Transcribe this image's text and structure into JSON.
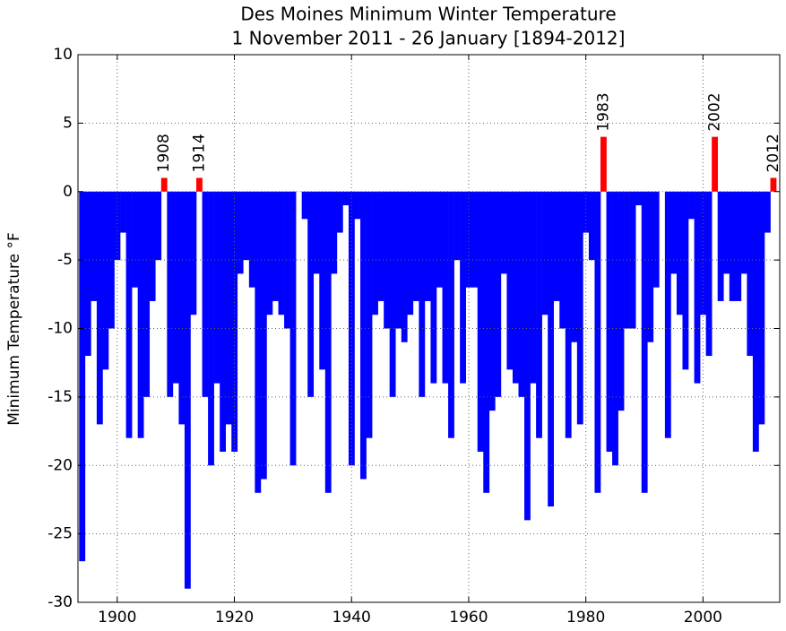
{
  "chart_data": {
    "type": "bar",
    "title": "Des Moines Minimum Winter Temperature",
    "subtitle": "1 November 2011 - 26 January [1894-2012]",
    "y_label": "Minimum Temperature °F",
    "x": [
      1894,
      1895,
      1896,
      1897,
      1898,
      1899,
      1900,
      1901,
      1902,
      1903,
      1904,
      1905,
      1906,
      1907,
      1908,
      1909,
      1910,
      1911,
      1912,
      1913,
      1914,
      1915,
      1916,
      1917,
      1918,
      1919,
      1920,
      1921,
      1922,
      1923,
      1924,
      1925,
      1926,
      1927,
      1928,
      1929,
      1930,
      1931,
      1932,
      1933,
      1934,
      1935,
      1936,
      1937,
      1938,
      1939,
      1940,
      1941,
      1942,
      1943,
      1944,
      1945,
      1946,
      1947,
      1948,
      1949,
      1950,
      1951,
      1952,
      1953,
      1954,
      1955,
      1956,
      1957,
      1958,
      1959,
      1960,
      1961,
      1962,
      1963,
      1964,
      1965,
      1966,
      1967,
      1968,
      1969,
      1970,
      1971,
      1972,
      1973,
      1974,
      1975,
      1976,
      1977,
      1978,
      1979,
      1980,
      1981,
      1982,
      1983,
      1984,
      1985,
      1986,
      1987,
      1988,
      1989,
      1990,
      1991,
      1992,
      1993,
      1994,
      1995,
      1996,
      1997,
      1998,
      1999,
      2000,
      2001,
      2002,
      2003,
      2004,
      2005,
      2006,
      2007,
      2008,
      2009,
      2010,
      2011,
      2012
    ],
    "values": [
      -27,
      -12,
      -8,
      -17,
      -13,
      -10,
      -5,
      -3,
      -18,
      -7,
      -18,
      -15,
      -8,
      -5,
      1,
      -15,
      -14,
      -17,
      -29,
      -9,
      1,
      -15,
      -20,
      -14,
      -19,
      -17,
      -19,
      -6,
      -5,
      -7,
      -22,
      -21,
      -9,
      -8,
      -9,
      -10,
      -20,
      0,
      -2,
      -15,
      -6,
      -13,
      -22,
      -6,
      -3,
      -1,
      -20,
      -2,
      -21,
      -18,
      -9,
      -8,
      -10,
      -15,
      -10,
      -11,
      -9,
      -8,
      -15,
      -8,
      -14,
      -7,
      -14,
      -18,
      -5,
      -14,
      -7,
      -7,
      -19,
      -22,
      -16,
      -15,
      -6,
      -13,
      -14,
      -15,
      -24,
      -14,
      -18,
      -9,
      -23,
      -8,
      -10,
      -18,
      -11,
      -17,
      -3,
      -5,
      -22,
      4,
      -19,
      -20,
      -16,
      -10,
      -10,
      -1,
      -22,
      -11,
      -7,
      0,
      -18,
      -6,
      -9,
      -13,
      -2,
      -14,
      -9,
      -12,
      4,
      -8,
      -6,
      -8,
      -8,
      -6,
      -12,
      -19,
      -17,
      -3,
      1
    ],
    "color": "#0000ff",
    "positive_color": "#ff0000",
    "annotations": [
      "1908",
      "1914",
      "1983",
      "2002",
      "2012"
    ],
    "xlim": [
      1893.3,
      2013.1
    ],
    "xticks": [
      1900,
      1920,
      1940,
      1960,
      1980,
      2000
    ],
    "ylim": [
      -30,
      10
    ],
    "yticks": [
      -30,
      -25,
      -20,
      -15,
      -10,
      -5,
      0,
      5,
      10
    ],
    "grid": true
  }
}
